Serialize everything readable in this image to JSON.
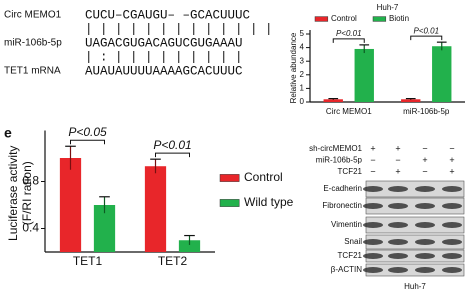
{
  "alignment": {
    "rows": [
      {
        "label": "Circ MEMO1",
        "sequence": "CUCU–CGAUGU– –GCACUUUC"
      },
      {
        "label": "miR-106b-5p",
        "sequence": "UAGACGUGACAGUCGUGAAAU"
      },
      {
        "label": "TET1 mRNA",
        "sequence": "AUAUAUUUUAAAAGCACUUUC"
      }
    ],
    "pairings": [
      "|  |  | | | |     | | | | | | |",
      "|  :  |  |       | | | | | | |"
    ]
  },
  "panel_label": "e",
  "chart_data": [
    {
      "type": "bar",
      "title": "Huh-7",
      "y_label": [
        "Relative abundance"
      ],
      "categories": [
        "Circ MEMO1",
        "miR-106b-5p"
      ],
      "series": [
        {
          "name": "Control",
          "color": "#e8262a",
          "values": [
            0.2,
            0.2
          ],
          "errors": [
            0.05,
            0.05
          ]
        },
        {
          "name": "Biotin",
          "color": "#22b14c",
          "values": [
            3.9,
            4.1
          ],
          "errors": [
            0.3,
            0.3
          ]
        }
      ],
      "ylim": [
        0,
        5
      ],
      "yticks": [
        0,
        1,
        2,
        3,
        4,
        5
      ],
      "annotations": [
        "P<0.01",
        "P<0.01"
      ],
      "legend": "top"
    },
    {
      "type": "bar",
      "y_label": [
        "Luciferase activity",
        "(F/RI ration)"
      ],
      "categories": [
        "TET1",
        "TET2"
      ],
      "series": [
        {
          "name": "Control",
          "color": "#e8262a",
          "values": [
            1.0,
            0.93
          ],
          "errors": [
            0.1,
            0.06
          ]
        },
        {
          "name": "Wild type",
          "color": "#22b14c",
          "values": [
            0.6,
            0.3
          ],
          "errors": [
            0.07,
            0.04
          ]
        }
      ],
      "ylim": [
        0.2,
        1.2
      ],
      "yticks": [
        0.4,
        0.8
      ],
      "annotations": [
        "P<0.05",
        "P<0.01"
      ],
      "legend": "right"
    }
  ],
  "blot": {
    "conditions": [
      {
        "label": "sh-circMEMO1",
        "signs": [
          "+",
          "+",
          "−",
          "−"
        ]
      },
      {
        "label": "miR-106b-5p",
        "signs": [
          "−",
          "−",
          "+",
          "+"
        ]
      },
      {
        "label": "TCF21",
        "signs": [
          "−",
          "+",
          "−",
          "+"
        ]
      }
    ],
    "rows": [
      "E-cadherin",
      "Fibronectin",
      "Vimentin",
      "Snail",
      "TCF21",
      "β-ACTIN"
    ],
    "cell_line": "Huh-7"
  }
}
